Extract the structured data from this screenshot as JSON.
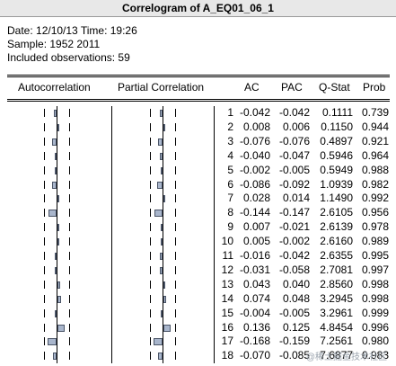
{
  "window": {
    "title": "Correlogram of A_EQ01_06_1"
  },
  "info": {
    "date_line": "Date: 12/10/13   Time: 19:26",
    "sample_line": "Sample: 1952 2011",
    "obs_line": "Included observations: 59"
  },
  "columns": {
    "autocorrelation": "Autocorrelation",
    "partial": "Partial Correlation",
    "ac": "AC",
    "pac": "PAC",
    "qstat": "Q-Stat",
    "prob": "Prob"
  },
  "watermark": "@稀土掘金技术社区",
  "chart_data": {
    "type": "table",
    "lags": [
      1,
      2,
      3,
      4,
      5,
      6,
      7,
      8,
      9,
      10,
      11,
      12,
      13,
      14,
      15,
      16,
      17,
      18
    ],
    "ac": [
      "-0.042",
      "0.008",
      "-0.076",
      "-0.040",
      "-0.002",
      "-0.086",
      "0.028",
      "-0.144",
      "0.007",
      "0.005",
      "-0.016",
      "-0.031",
      "0.043",
      "0.074",
      "-0.004",
      "0.136",
      "-0.168",
      "-0.070"
    ],
    "pac": [
      "-0.042",
      "0.006",
      "-0.076",
      "-0.047",
      "-0.005",
      "-0.092",
      "0.014",
      "-0.147",
      "-0.021",
      "-0.002",
      "-0.042",
      "-0.058",
      "0.040",
      "0.048",
      "-0.005",
      "0.125",
      "-0.159",
      "-0.085"
    ],
    "qstat": [
      "0.1111",
      "0.1150",
      "0.4897",
      "0.5946",
      "0.5949",
      "1.0939",
      "1.1490",
      "2.6105",
      "2.6139",
      "2.6160",
      "2.6355",
      "2.7081",
      "2.8560",
      "3.2945",
      "3.2961",
      "4.8454",
      "7.2561",
      "7.6877"
    ],
    "prob": [
      "0.739",
      "0.944",
      "0.921",
      "0.964",
      "0.988",
      "0.982",
      "0.992",
      "0.956",
      "0.978",
      "0.989",
      "0.995",
      "0.997",
      "0.998",
      "0.998",
      "0.999",
      "0.996",
      "0.980",
      "0.983"
    ]
  }
}
